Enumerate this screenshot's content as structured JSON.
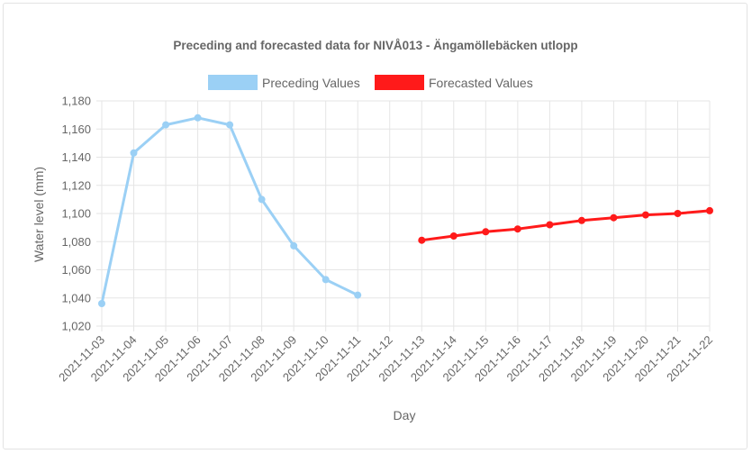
{
  "chart_data": {
    "type": "line",
    "title": "Preceding and forecasted data for NIVÅ013 - Ängamöllebäcken utlopp",
    "xlabel": "Day",
    "ylabel": "Water level (mm)",
    "ylim": [
      1020,
      1180
    ],
    "yticks": [
      1020,
      1040,
      1060,
      1080,
      1100,
      1120,
      1140,
      1160,
      1180
    ],
    "ytick_labels": [
      "1,020",
      "1,040",
      "1,060",
      "1,080",
      "1,100",
      "1,120",
      "1,140",
      "1,160",
      "1,180"
    ],
    "grid": true,
    "legend_position": "top-center",
    "categories": [
      "2021-11-03",
      "2021-11-04",
      "2021-11-05",
      "2021-11-06",
      "2021-11-07",
      "2021-11-08",
      "2021-11-09",
      "2021-11-10",
      "2021-11-11",
      "2021-11-12",
      "2021-11-13",
      "2021-11-14",
      "2021-11-15",
      "2021-11-16",
      "2021-11-17",
      "2021-11-18",
      "2021-11-19",
      "2021-11-20",
      "2021-11-21",
      "2021-11-22"
    ],
    "series": [
      {
        "name": "Preceding Values",
        "color": "#9bd0f5",
        "values": [
          1036,
          1143,
          1163,
          1168,
          1163,
          1110,
          1077,
          1053,
          1042,
          null,
          null,
          null,
          null,
          null,
          null,
          null,
          null,
          null,
          null,
          null
        ]
      },
      {
        "name": "Forecasted Values",
        "color": "#ff1a1a",
        "values": [
          null,
          null,
          null,
          null,
          null,
          null,
          null,
          null,
          null,
          null,
          1081,
          1084,
          1087,
          1089,
          1092,
          1095,
          1097,
          1099,
          1100,
          1102
        ]
      }
    ]
  }
}
